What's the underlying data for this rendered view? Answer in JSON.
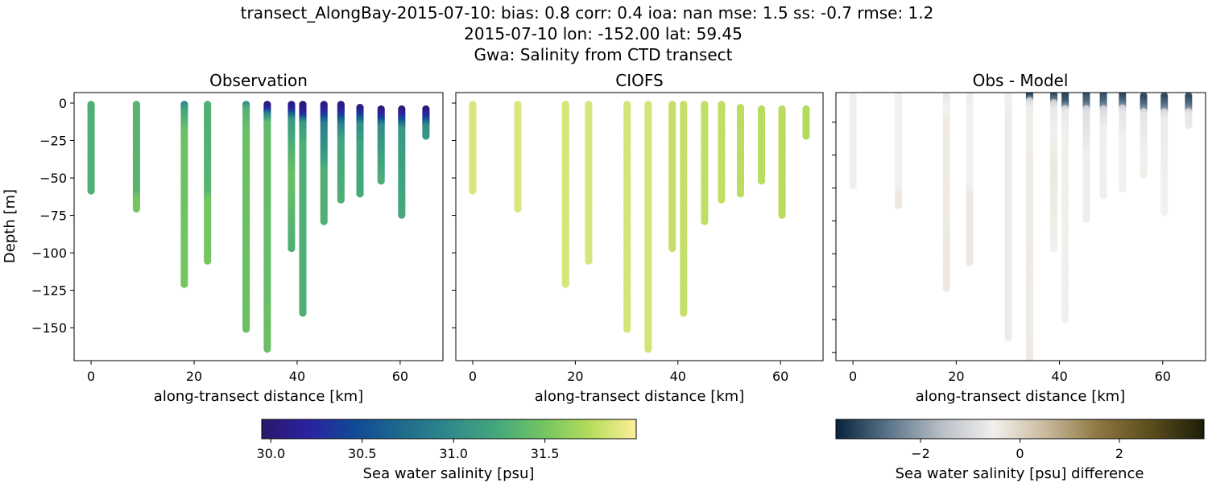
{
  "title_lines": [
    "transect_AlongBay-2015-07-10: bias: 0.8  corr: 0.4  ioa: nan  mse: 1.5  ss: -0.7  rmse: 1.2",
    "2015-07-10 lon: -152.00 lat: 59.45",
    "Gwa: Salinity from CTD transect"
  ],
  "chart_data": [
    {
      "type": "scatter",
      "title": "Observation",
      "xlabel": "along-transect distance [km]",
      "ylabel": "Depth [m]",
      "xlim": [
        -3.3,
        68.3
      ],
      "ylim": [
        -172,
        7
      ],
      "xticks": [
        "0",
        "20",
        "40",
        "60"
      ],
      "yticks": [
        "0",
        "−25",
        "−50",
        "−75",
        "−100",
        "−125",
        "−150"
      ],
      "colormap": "haline",
      "clim": [
        29.95,
        32.0
      ]
    },
    {
      "type": "scatter",
      "title": "CIOFS",
      "xlabel": "along-transect distance [km]",
      "xlim": [
        -3.3,
        68.3
      ],
      "ylim": [
        -172,
        7
      ],
      "xticks": [
        "0",
        "20",
        "40",
        "60"
      ],
      "colormap": "haline",
      "clim": [
        29.95,
        32.0
      ]
    },
    {
      "type": "scatter",
      "title": "Obs - Model",
      "xlabel": "along-transect distance [km]",
      "xlim": [
        -3.3,
        68.3
      ],
      "ylim": [
        -165,
        -2
      ],
      "xticks": [
        "0",
        "20",
        "40",
        "60"
      ],
      "colormap": "diff",
      "clim": [
        -3.7,
        3.7
      ]
    }
  ],
  "casts": [
    {
      "x": 0,
      "top": -1,
      "bottom": -59,
      "obs": [
        [
          0,
          31.3
        ],
        [
          59,
          31.3
        ]
      ],
      "model": 31.88
    },
    {
      "x": 8.8,
      "top": -1,
      "bottom": -71,
      "obs": [
        [
          0,
          31.35
        ],
        [
          60,
          31.35
        ],
        [
          65,
          31.5
        ],
        [
          71,
          31.5
        ]
      ],
      "model": 31.88
    },
    {
      "x": 18.1,
      "top": -1,
      "bottom": -121,
      "obs": [
        [
          0,
          30.9
        ],
        [
          5,
          31.2
        ],
        [
          20,
          31.45
        ],
        [
          121,
          31.5
        ]
      ],
      "model": 31.87
    },
    {
      "x": 22.6,
      "top": -1,
      "bottom": -106,
      "obs": [
        [
          0,
          31.3
        ],
        [
          60,
          31.35
        ],
        [
          65,
          31.5
        ],
        [
          106,
          31.5
        ]
      ],
      "model": 31.87
    },
    {
      "x": 30.1,
      "top": -1,
      "bottom": -151,
      "obs": [
        [
          0,
          30.9
        ],
        [
          4,
          31.3
        ],
        [
          20,
          31.45
        ],
        [
          151,
          31.45
        ]
      ],
      "model": 31.86
    },
    {
      "x": 34.2,
      "top": -1,
      "bottom": -165,
      "obs": [
        [
          0,
          30.0
        ],
        [
          4,
          30.1
        ],
        [
          8,
          30.9
        ],
        [
          14,
          31.4
        ],
        [
          165,
          31.45
        ]
      ],
      "model": 31.85
    },
    {
      "x": 38.9,
      "top": -1,
      "bottom": -97,
      "obs": [
        [
          0,
          30.0
        ],
        [
          5,
          30.2
        ],
        [
          12,
          31.1
        ],
        [
          30,
          31.3
        ],
        [
          50,
          31.45
        ],
        [
          97,
          31.3
        ]
      ],
      "model": 31.8
    },
    {
      "x": 41.1,
      "top": -1,
      "bottom": -141,
      "obs": [
        [
          0,
          30.0
        ],
        [
          8,
          30.2
        ],
        [
          14,
          31.1
        ],
        [
          30,
          31.3
        ],
        [
          141,
          31.3
        ]
      ],
      "model": 31.8
    },
    {
      "x": 45.2,
      "top": -1,
      "bottom": -79,
      "obs": [
        [
          0,
          30.0
        ],
        [
          8,
          30.3
        ],
        [
          15,
          30.9
        ],
        [
          35,
          31.1
        ],
        [
          45,
          31.3
        ],
        [
          79,
          31.3
        ]
      ],
      "model": 31.78
    },
    {
      "x": 48.5,
      "top": -1,
      "bottom": -65,
      "obs": [
        [
          0,
          30.0
        ],
        [
          8,
          30.3
        ],
        [
          15,
          30.9
        ],
        [
          25,
          31.2
        ],
        [
          65,
          31.3
        ]
      ],
      "model": 31.78
    },
    {
      "x": 52.2,
      "top": -3,
      "bottom": -61,
      "obs": [
        [
          3,
          30.0
        ],
        [
          8,
          30.3
        ],
        [
          15,
          31.0
        ],
        [
          30,
          31.2
        ],
        [
          61,
          31.25
        ]
      ],
      "model": 31.76
    },
    {
      "x": 56.3,
      "top": -4,
      "bottom": -53,
      "obs": [
        [
          4,
          30.0
        ],
        [
          10,
          30.3
        ],
        [
          16,
          31.0
        ],
        [
          53,
          31.3
        ]
      ],
      "model": 31.76
    },
    {
      "x": 60.3,
      "top": -4,
      "bottom": -75,
      "obs": [
        [
          4,
          30.0
        ],
        [
          10,
          30.3
        ],
        [
          18,
          31.1
        ],
        [
          75,
          31.25
        ]
      ],
      "model": 31.75
    },
    {
      "x": 65,
      "top": -4,
      "bottom": -23,
      "obs": [
        [
          4,
          30.0
        ],
        [
          10,
          30.3
        ],
        [
          16,
          31.0
        ],
        [
          23,
          31.1
        ]
      ],
      "model": 31.74
    }
  ],
  "colorbars": [
    {
      "label": "Sea water salinity [psu]",
      "ticks": [
        {
          "v": 30.0,
          "t": "30.0"
        },
        {
          "v": 30.5,
          "t": "30.5"
        },
        {
          "v": 31.0,
          "t": "31.0"
        },
        {
          "v": 31.5,
          "t": "31.5"
        }
      ]
    },
    {
      "label": "Sea water salinity [psu] difference",
      "ticks": [
        {
          "v": -2,
          "t": "−2"
        },
        {
          "v": 0,
          "t": "0"
        },
        {
          "v": 2,
          "t": "2"
        }
      ]
    }
  ],
  "colors": {
    "haline": [
      "#2a186c",
      "#2a22a0",
      "#0f4a95",
      "#1f6b8c",
      "#2f898a",
      "#44a77c",
      "#72c462",
      "#b5dc5c",
      "#fdef9a"
    ],
    "diff": [
      "#07233d",
      "#5b7489",
      "#b8bec5",
      "#f2f0ee",
      "#c8b99b",
      "#8d7640",
      "#5a4c1c",
      "#1c1d08"
    ]
  }
}
